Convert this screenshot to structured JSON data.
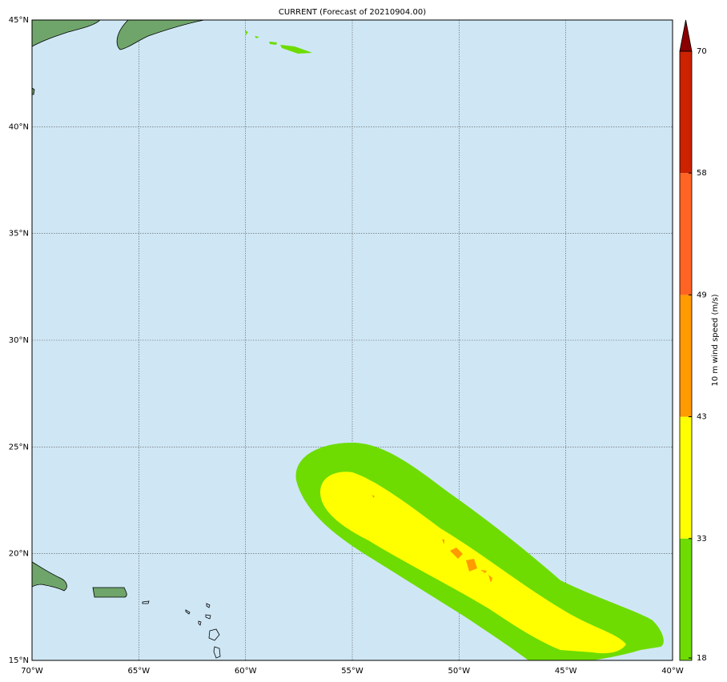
{
  "chart_data": {
    "type": "map",
    "title": "CURRENT (Forecast of 20210904.00)",
    "xlim": [
      -70,
      -40
    ],
    "ylim": [
      15,
      45
    ],
    "xticks": [
      {
        "value": -70,
        "label": "70°W"
      },
      {
        "value": -65,
        "label": "65°W"
      },
      {
        "value": -60,
        "label": "60°W"
      },
      {
        "value": -55,
        "label": "55°W"
      },
      {
        "value": -50,
        "label": "50°W"
      },
      {
        "value": -45,
        "label": "45°W"
      },
      {
        "value": -40,
        "label": "40°W"
      }
    ],
    "yticks": [
      {
        "value": 15,
        "label": "15°N"
      },
      {
        "value": 20,
        "label": "20°N"
      },
      {
        "value": 25,
        "label": "25°N"
      },
      {
        "value": 30,
        "label": "30°N"
      },
      {
        "value": 35,
        "label": "35°N"
      },
      {
        "value": 40,
        "label": "40°N"
      },
      {
        "value": 45,
        "label": "45°N"
      }
    ],
    "grid": true,
    "colorbar": {
      "label": "10 m wind speed (m/s)",
      "ticks": [
        18,
        33,
        43,
        49,
        58,
        70
      ],
      "colors": [
        "#6edc00",
        "#ffff00",
        "#ff9a00",
        "#ff6424",
        "#cc2200"
      ],
      "extend_color": "#8b0000"
    }
  }
}
